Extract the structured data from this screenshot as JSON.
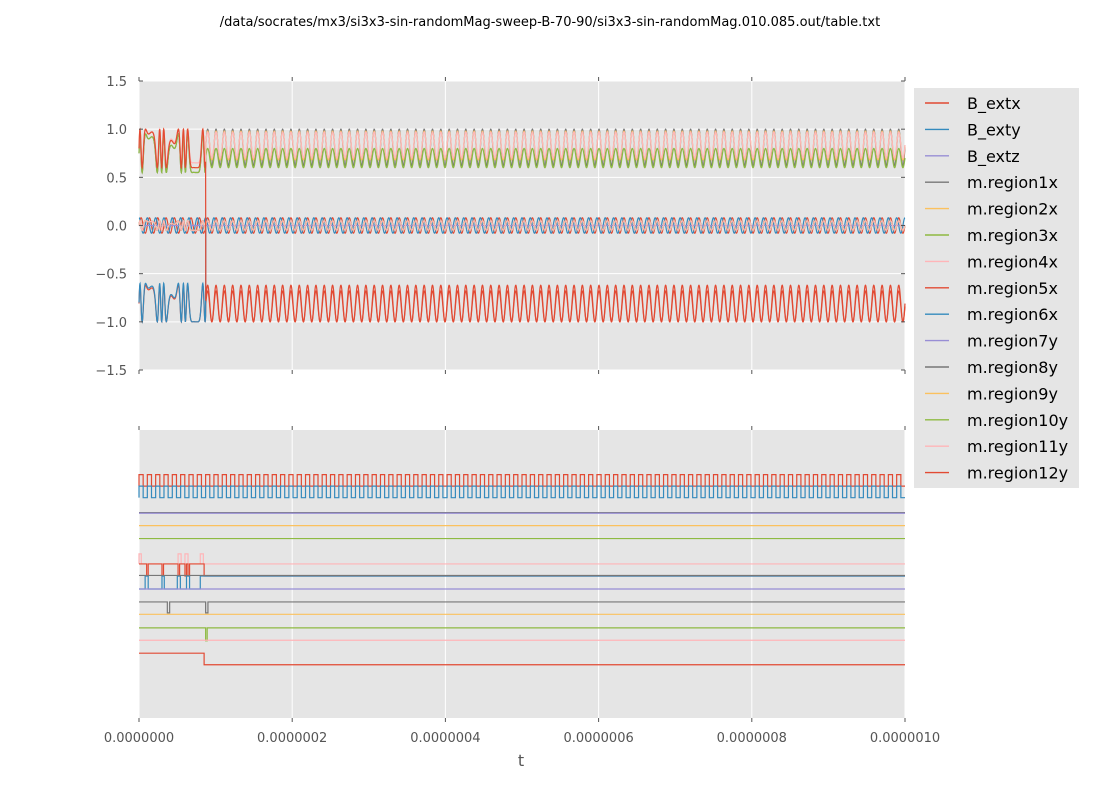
{
  "chart_data": {
    "type": "line",
    "title": "/data/socrates/mx3/si3x3-sin-randomMag-sweep-B-70-90/si3x3-sin-randomMag.010.085.out/table.txt",
    "xlabel": "t",
    "xlim": [
      0,
      1e-06
    ],
    "x_ticks": [
      "0.0000000",
      "0.0000002",
      "0.0000004",
      "0.0000006",
      "0.0000008",
      "0.0000010"
    ],
    "grid": true,
    "legend_position": "right",
    "top_panel": {
      "ylim": [
        -1.5,
        1.5
      ],
      "y_ticks": [
        "1.5",
        "1.0",
        "0.5",
        "0.0",
        "−0.5",
        "−1.0",
        "−1.5"
      ],
      "cycles": 92,
      "switch_t": 8.7e-08,
      "series": [
        {
          "name": "B_extx",
          "color": "#E24A33",
          "kind": "sin",
          "amplitude": 0.08,
          "offset": 0.0
        },
        {
          "name": "B_exty",
          "color": "#348ABD",
          "kind": "cos",
          "amplitude": 0.08,
          "offset": 0.0
        },
        {
          "name": "B_extz",
          "color": "#988ED5",
          "kind": "const",
          "value": 0.0
        },
        {
          "name": "m.region1x",
          "color": "#777777",
          "kind": "osc",
          "pre": [
            0.55,
            0.95
          ],
          "post": [
            0.62,
            1.0
          ]
        },
        {
          "name": "m.region2x",
          "color": "#FBC15E",
          "kind": "osc",
          "pre": [
            0.6,
            1.0
          ],
          "post": [
            0.68,
            0.98
          ]
        },
        {
          "name": "m.region3x",
          "color": "#8EBA42",
          "kind": "osc",
          "pre": [
            0.55,
            0.95
          ],
          "post": [
            0.6,
            0.8
          ]
        },
        {
          "name": "m.region4x",
          "color": "#FFB5B8",
          "kind": "osc",
          "pre": [
            0.65,
            1.0
          ],
          "post": [
            0.7,
            0.97
          ]
        },
        {
          "name": "m.region5x",
          "color": "#E24A33",
          "kind": "osc",
          "pre": [
            -1.0,
            -0.62
          ],
          "post": [
            -1.0,
            -0.68
          ]
        },
        {
          "name": "m.region6x",
          "color": "#348ABD",
          "kind": "osc",
          "pre": [
            -1.0,
            -0.6
          ],
          "post": [
            -0.05,
            0.05
          ]
        },
        {
          "name": "m.region7y",
          "color": "#988ED5",
          "kind": "osc",
          "pre": [
            -0.05,
            0.05
          ],
          "post": [
            -0.05,
            0.05
          ]
        },
        {
          "name": "m.region8y",
          "color": "#777777",
          "kind": "osc",
          "pre": [
            -0.05,
            0.05
          ],
          "post": [
            -0.05,
            0.05
          ]
        },
        {
          "name": "m.region9y",
          "color": "#FBC15E",
          "kind": "osc",
          "pre": [
            -0.05,
            0.05
          ],
          "post": [
            -0.05,
            0.05
          ]
        },
        {
          "name": "m.region10y",
          "color": "#8EBA42",
          "kind": "osc",
          "pre": [
            -0.05,
            0.05
          ],
          "post": [
            -0.05,
            0.05
          ]
        },
        {
          "name": "m.region11y",
          "color": "#FFB5B8",
          "kind": "osc",
          "pre": [
            -0.05,
            0.05
          ],
          "post": [
            -0.05,
            0.05
          ]
        },
        {
          "name": "m.region12y",
          "color": "#E24A33",
          "kind": "osc",
          "pre": [
            0.6,
            1.0
          ],
          "post": [
            -1.0,
            -0.62
          ]
        }
      ]
    },
    "bottom_panel": {
      "ylim": [
        0,
        1
      ],
      "tracks": [
        {
          "color": "#E24A33",
          "kind": "square",
          "base": 0.805,
          "amp": 0.04,
          "cycles": 92
        },
        {
          "color": "#348ABD",
          "kind": "square",
          "base": 0.765,
          "amp": 0.04,
          "cycles": 92
        },
        {
          "color": "#777777",
          "kind": "flat",
          "level": 0.713
        },
        {
          "color": "#988ED5",
          "kind": "flat",
          "level": 0.711
        },
        {
          "color": "#FBC15E",
          "kind": "flat",
          "level": 0.668
        },
        {
          "color": "#8EBA42",
          "kind": "flat",
          "level": 0.623
        },
        {
          "color": "#FFB5B8",
          "kind": "flat_pulses",
          "level": 0.535,
          "pulses": [
            [
              0.0,
              0.003,
              0.57
            ],
            [
              0.051,
              0.055,
              0.57
            ],
            [
              0.06,
              0.064,
              0.57
            ],
            [
              0.08,
              0.084,
              0.57
            ]
          ]
        },
        {
          "color": "#E24A33",
          "kind": "step_pulses",
          "pre": 0.535,
          "post": 0.493,
          "switch": 0.085,
          "pulses": [
            [
              0.01,
              0.012,
              0.493
            ],
            [
              0.03,
              0.032,
              0.493
            ],
            [
              0.051,
              0.053,
              0.493
            ],
            [
              0.06,
              0.062,
              0.493
            ],
            [
              0.064,
              0.066,
              0.493
            ]
          ]
        },
        {
          "color": "#348ABD",
          "kind": "step_pulses",
          "pre": 0.448,
          "post": 0.493,
          "switch": 0.08,
          "pulses": [
            [
              0.008,
              0.012,
              0.493
            ],
            [
              0.03,
              0.033,
              0.493
            ],
            [
              0.05,
              0.054,
              0.493
            ],
            [
              0.062,
              0.066,
              0.493
            ]
          ]
        },
        {
          "color": "#777777",
          "kind": "flat",
          "level": 0.495
        },
        {
          "color": "#988ED5",
          "kind": "flat",
          "level": 0.448
        },
        {
          "color": "#777777",
          "kind": "flat_pulses",
          "level": 0.403,
          "pulses": [
            [
              0.037,
              0.04,
              0.365
            ],
            [
              0.087,
              0.09,
              0.365
            ]
          ]
        },
        {
          "color": "#FBC15E",
          "kind": "flat",
          "level": 0.36
        },
        {
          "color": "#8EBA42",
          "kind": "flat_pulses",
          "level": 0.313,
          "pulses": [
            [
              0.087,
              0.089,
              0.268
            ]
          ]
        },
        {
          "color": "#FFB5B8",
          "kind": "flat",
          "level": 0.27
        },
        {
          "color": "#E24A33",
          "kind": "step",
          "pre": 0.225,
          "post": 0.185,
          "switch": 0.085
        }
      ]
    }
  }
}
